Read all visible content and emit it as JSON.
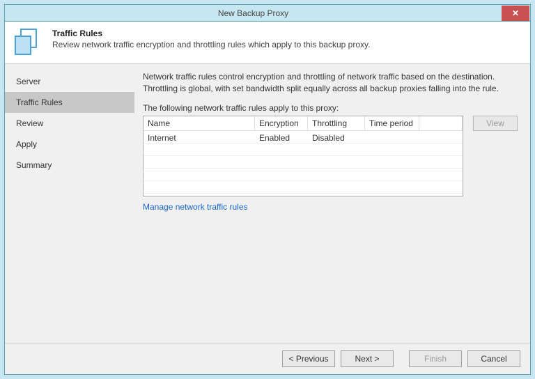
{
  "titlebar": {
    "title": "New Backup Proxy"
  },
  "header": {
    "title": "Traffic Rules",
    "subtitle": "Review network traffic encryption and throttling rules which apply to this backup proxy."
  },
  "sidebar": {
    "items": [
      {
        "label": "Server"
      },
      {
        "label": "Traffic Rules"
      },
      {
        "label": "Review"
      },
      {
        "label": "Apply"
      },
      {
        "label": "Summary"
      }
    ],
    "selected_index": 1
  },
  "main": {
    "description": "Network traffic rules control encryption and throttling of network traffic based on the destination. Throttling is global, with set bandwidth split equally across all backup proxies falling into the rule.",
    "table_label": "The following network traffic rules apply to this proxy:",
    "columns": [
      "Name",
      "Encryption",
      "Throttling",
      "Time period"
    ],
    "rows": [
      {
        "name": "Internet",
        "encryption": "Enabled",
        "throttling": "Disabled",
        "time_period": ""
      }
    ],
    "view_button": "View",
    "link_text": "Manage network traffic rules"
  },
  "footer": {
    "previous": "< Previous",
    "next": "Next >",
    "finish": "Finish",
    "cancel": "Cancel"
  }
}
